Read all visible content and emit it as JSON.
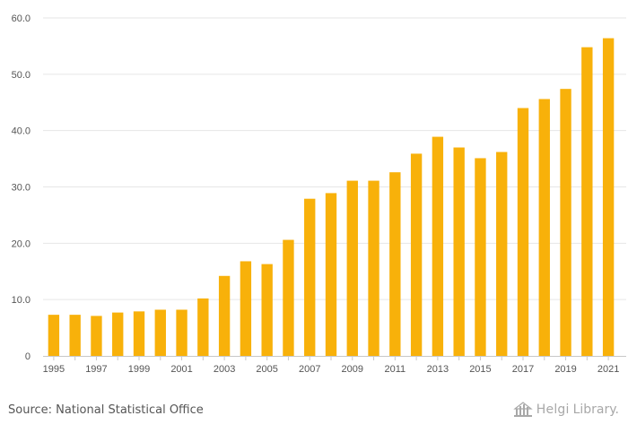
{
  "chart_data": {
    "type": "bar",
    "title": "",
    "xlabel": "",
    "ylabel": "",
    "ylim": [
      0,
      60
    ],
    "yticks": [
      "0",
      "10.0",
      "20.0",
      "30.0",
      "40.0",
      "50.0",
      "60.0"
    ],
    "ytick_values": [
      0,
      10,
      20,
      30,
      40,
      50,
      60
    ],
    "categories": [
      "1995",
      "1996",
      "1997",
      "1998",
      "1999",
      "2000",
      "2001",
      "2002",
      "2003",
      "2004",
      "2005",
      "2006",
      "2007",
      "2008",
      "2009",
      "2010",
      "2011",
      "2012",
      "2013",
      "2014",
      "2015",
      "2016",
      "2017",
      "2018",
      "2019",
      "2020",
      "2021"
    ],
    "xtick_labels": [
      "1995",
      "1997",
      "1999",
      "2001",
      "2003",
      "2005",
      "2007",
      "2009",
      "2011",
      "2013",
      "2015",
      "2017",
      "2019",
      "2021"
    ],
    "values": [
      7.3,
      7.3,
      7.1,
      7.7,
      7.9,
      8.2,
      8.2,
      10.2,
      14.2,
      16.8,
      16.3,
      20.6,
      27.9,
      28.9,
      31.1,
      31.1,
      32.6,
      35.9,
      38.9,
      37.0,
      35.1,
      36.2,
      44.0,
      45.6,
      47.4,
      54.8,
      56.4
    ],
    "grid": true,
    "bar_color": "#f8b10a",
    "grid_color": "#e6e6e6",
    "axis_color": "#c8c8c8"
  },
  "footer": {
    "source": "Source: National Statistical Office",
    "brand_name": "Helgi",
    "brand_suffix": "Library."
  },
  "colors": {
    "text": "#555555",
    "brand": "#a8a8a8"
  }
}
